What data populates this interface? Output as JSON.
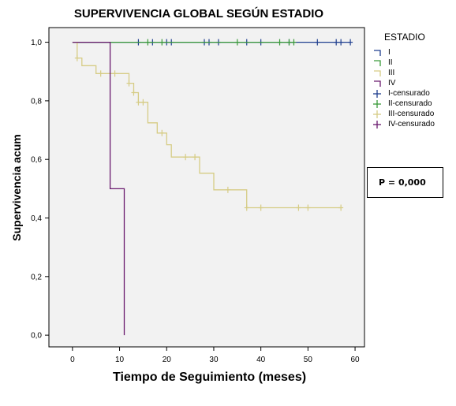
{
  "chart_data": {
    "type": "line",
    "subtype": "kaplan-meier step",
    "title": "SUPERVIVENCIA GLOBAL SEGÚN ESTADIO",
    "xlabel": "Tiempo de Seguimiento (meses)",
    "ylabel": "Supervivencia acum",
    "xlim": [
      -5,
      62
    ],
    "ylim": [
      -0.04,
      1.05
    ],
    "xticks": [
      0,
      10,
      20,
      30,
      40,
      50,
      60
    ],
    "yticks": [
      0.0,
      0.2,
      0.4,
      0.6,
      0.8,
      1.0
    ],
    "ytick_labels": [
      "0,0",
      "0,2",
      "0,4",
      "0,6",
      "0,8",
      "1,0"
    ],
    "grid": false,
    "legend_title": "ESTADIO",
    "legend_position": "right",
    "legend": [
      {
        "label": "I",
        "kind": "line",
        "color": "#1f3f8f"
      },
      {
        "label": "II",
        "kind": "line",
        "color": "#3a9a3a"
      },
      {
        "label": "III",
        "kind": "line",
        "color": "#d6cc85"
      },
      {
        "label": "IV",
        "kind": "line",
        "color": "#6a1a6e"
      },
      {
        "label": "I-censurado",
        "kind": "marker",
        "color": "#1f3f8f"
      },
      {
        "label": "II-censurado",
        "kind": "marker",
        "color": "#3a9a3a"
      },
      {
        "label": "III-censurado",
        "kind": "marker",
        "color": "#d6cc85"
      },
      {
        "label": "IV-censurado",
        "kind": "marker",
        "color": "#6a1a6e"
      }
    ],
    "annotation": "P = 0,000",
    "series": [
      {
        "name": "I",
        "color": "#1f3f8f",
        "steps": [
          [
            0,
            1.0
          ],
          [
            59,
            1.0
          ]
        ],
        "censored": [
          [
            14,
            1.0
          ],
          [
            17,
            1.0
          ],
          [
            20,
            1.0
          ],
          [
            21,
            1.0
          ],
          [
            28,
            1.0
          ],
          [
            29,
            1.0
          ],
          [
            31,
            1.0
          ],
          [
            37,
            1.0
          ],
          [
            40,
            1.0
          ],
          [
            46,
            1.0
          ],
          [
            52,
            1.0
          ],
          [
            56,
            1.0
          ],
          [
            57,
            1.0
          ],
          [
            59,
            1.0
          ]
        ]
      },
      {
        "name": "II",
        "color": "#3a9a3a",
        "steps": [
          [
            0,
            1.0
          ],
          [
            47,
            1.0
          ]
        ],
        "censored": [
          [
            16,
            1.0
          ],
          [
            19,
            1.0
          ],
          [
            35,
            1.0
          ],
          [
            44,
            1.0
          ],
          [
            46,
            1.0
          ],
          [
            47,
            1.0
          ]
        ]
      },
      {
        "name": "III",
        "color": "#d6cc85",
        "steps": [
          [
            0,
            1.0
          ],
          [
            1,
            1.0
          ],
          [
            1,
            0.946
          ],
          [
            2,
            0.946
          ],
          [
            2,
            0.92
          ],
          [
            5,
            0.92
          ],
          [
            5,
            0.893
          ],
          [
            12,
            0.893
          ],
          [
            12,
            0.86
          ],
          [
            13,
            0.86
          ],
          [
            13,
            0.828
          ],
          [
            14,
            0.828
          ],
          [
            14,
            0.795
          ],
          [
            16,
            0.795
          ],
          [
            16,
            0.725
          ],
          [
            18,
            0.725
          ],
          [
            18,
            0.69
          ],
          [
            20,
            0.69
          ],
          [
            20,
            0.65
          ],
          [
            21,
            0.65
          ],
          [
            21,
            0.608
          ],
          [
            27,
            0.608
          ],
          [
            27,
            0.553
          ],
          [
            30,
            0.553
          ],
          [
            30,
            0.496
          ],
          [
            37,
            0.496
          ],
          [
            37,
            0.435
          ],
          [
            57,
            0.435
          ]
        ],
        "censored": [
          [
            1,
            0.946
          ],
          [
            6,
            0.893
          ],
          [
            9,
            0.893
          ],
          [
            12,
            0.86
          ],
          [
            13,
            0.828
          ],
          [
            14,
            0.795
          ],
          [
            15,
            0.795
          ],
          [
            19,
            0.69
          ],
          [
            24,
            0.608
          ],
          [
            26,
            0.608
          ],
          [
            33,
            0.496
          ],
          [
            37,
            0.435
          ],
          [
            40,
            0.435
          ],
          [
            48,
            0.435
          ],
          [
            50,
            0.435
          ],
          [
            57,
            0.435
          ]
        ]
      },
      {
        "name": "IV",
        "color": "#6a1a6e",
        "steps": [
          [
            0,
            1.0
          ],
          [
            8,
            1.0
          ],
          [
            8,
            0.5
          ],
          [
            11,
            0.5
          ],
          [
            11,
            0.0
          ]
        ],
        "censored": []
      }
    ]
  }
}
